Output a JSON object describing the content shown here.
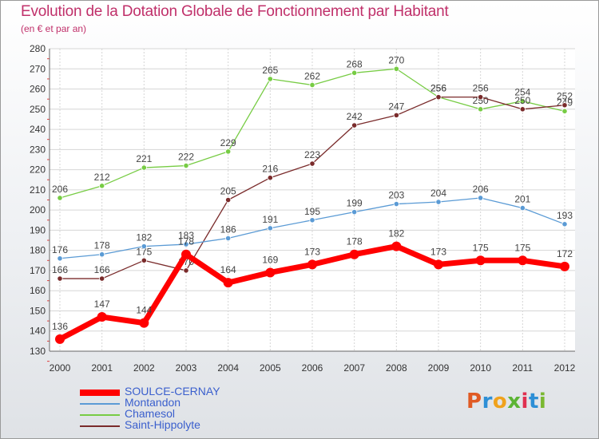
{
  "header": {
    "title": "Evolution de la Dotation Globale de Fonctionnement par Habitant",
    "subtitle": "(en € et par an)"
  },
  "logo": {
    "text": "Proxiti",
    "letter_colors": [
      "#e05a24",
      "#2d8fd6",
      "#f0a21c",
      "#5bb434",
      "#e03050",
      "#2d8fd6",
      "#7ab831"
    ]
  },
  "chart_data": {
    "type": "line",
    "title": "Evolution de la Dotation Globale de Fonctionnement par Habitant",
    "subtitle": "(en € et par an)",
    "xlabel": "",
    "ylabel": "",
    "x": [
      "2000",
      "2001",
      "2002",
      "2003",
      "2004",
      "2005",
      "2006",
      "2007",
      "2008",
      "2009",
      "2010",
      "2011",
      "2012"
    ],
    "ylim": [
      130,
      280
    ],
    "yticks": [
      130,
      140,
      150,
      160,
      170,
      180,
      190,
      200,
      210,
      220,
      230,
      240,
      250,
      260,
      270,
      280
    ],
    "grid": true,
    "legend_position": "bottom-left",
    "series": [
      {
        "name": "Chamesol",
        "color": "#77cc44",
        "values": [
          206,
          212,
          221,
          222,
          229,
          265,
          262,
          268,
          270,
          256,
          250,
          254,
          249
        ],
        "labels": [
          "206",
          "212",
          "221",
          "222",
          "229",
          "265",
          "262",
          "268",
          "270",
          "256",
          "250",
          "254",
          "249"
        ]
      },
      {
        "name": "Saint-Hippolyte",
        "color": "#7a2b2b",
        "values": [
          166,
          166,
          175,
          170,
          205,
          216,
          223,
          242,
          247,
          256,
          256,
          250,
          252
        ],
        "labels": [
          "166",
          "166",
          "175",
          "170",
          "205",
          "216",
          "223",
          "242",
          "247",
          "256",
          "256",
          "250",
          "252"
        ]
      },
      {
        "name": "Montandon",
        "color": "#5b9bd5",
        "values": [
          176,
          178,
          182,
          183,
          186,
          191,
          195,
          199,
          203,
          204,
          206,
          201,
          193
        ],
        "labels": [
          "176",
          "178",
          "182",
          "183",
          "186",
          "191",
          "195",
          "199",
          "203",
          "204",
          "206",
          "201",
          "193"
        ]
      },
      {
        "name": "SOULCE-CERNAY",
        "color": "#ff0000",
        "values": [
          136,
          147,
          144,
          178,
          164,
          169,
          173,
          178,
          182,
          173,
          175,
          175,
          172
        ],
        "labels": [
          "136",
          "147",
          "144",
          "178",
          "164",
          "169",
          "173",
          "178",
          "182",
          "173",
          "175",
          "175",
          "172"
        ]
      }
    ],
    "legend": [
      "SOULCE-CERNAY",
      "Montandon",
      "Chamesol",
      "Saint-Hippolyte"
    ]
  }
}
